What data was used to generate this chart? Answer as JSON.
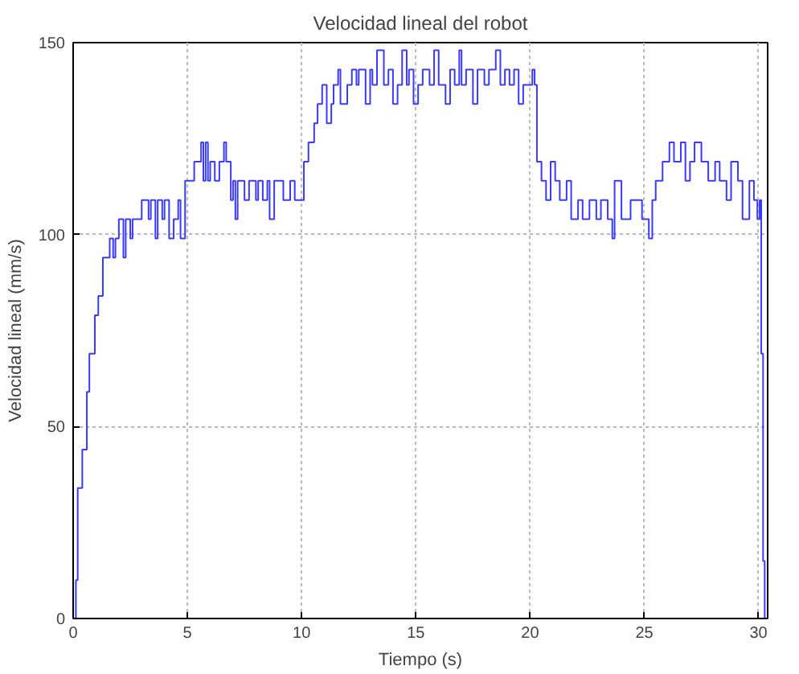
{
  "chart_data": {
    "type": "step",
    "title": "Velocidad lineal del robot",
    "xlabel": "Tiempo (s)",
    "ylabel": "Velocidad lineal (mm/s)",
    "xlim": [
      0,
      30.4
    ],
    "ylim": [
      0,
      150
    ],
    "xticks": [
      0,
      5,
      10,
      15,
      20,
      25,
      30
    ],
    "yticks": [
      0,
      50,
      100,
      150
    ],
    "grid": true,
    "line_style": "solid",
    "series": [
      {
        "color": "#3a3aff",
        "x": [
          0,
          0.12,
          0.2,
          0.4,
          0.6,
          0.71,
          0.95,
          1.1,
          1.3,
          1.6,
          1.75,
          1.85,
          2.0,
          2.2,
          2.3,
          2.5,
          2.6,
          3.0,
          3.3,
          3.4,
          3.6,
          3.7,
          3.9,
          4.0,
          4.2,
          4.4,
          4.6,
          4.7,
          4.9,
          5.3,
          5.6,
          5.7,
          5.8,
          5.9,
          6.0,
          6.2,
          6.4,
          6.6,
          6.7,
          6.9,
          7.0,
          7.1,
          7.2,
          7.5,
          7.7,
          8.0,
          8.1,
          8.3,
          8.5,
          8.6,
          8.8,
          9.2,
          9.5,
          9.7,
          10.1,
          10.3,
          10.55,
          10.7,
          10.9,
          11.1,
          11.3,
          11.4,
          11.6,
          11.7,
          12.0,
          12.2,
          12.4,
          12.5,
          12.8,
          13.0,
          13.1,
          13.3,
          13.6,
          13.8,
          14.0,
          14.2,
          14.4,
          14.6,
          14.7,
          14.9,
          15.1,
          15.3,
          15.6,
          15.8,
          16.0,
          16.3,
          16.5,
          16.7,
          16.9,
          17.0,
          17.2,
          17.5,
          17.7,
          18.0,
          18.2,
          18.5,
          18.7,
          18.9,
          19.1,
          19.3,
          19.5,
          19.7,
          20.1,
          20.2,
          20.3,
          20.5,
          20.7,
          20.9,
          21.1,
          21.3,
          21.6,
          21.8,
          22.1,
          22.3,
          22.6,
          22.9,
          23.1,
          23.4,
          23.6,
          23.7,
          24.0,
          24.4,
          24.9,
          25.2,
          25.35,
          25.5,
          25.8,
          26.1,
          26.3,
          26.6,
          26.8,
          27.0,
          27.2,
          27.5,
          27.8,
          28.1,
          28.3,
          28.6,
          28.8,
          29.1,
          29.3,
          29.6,
          29.8,
          29.95,
          30.05,
          30.12,
          30.2,
          30.27
        ],
        "values": [
          0,
          10,
          34,
          44,
          59,
          69,
          79,
          84,
          94,
          99,
          94,
          99,
          104,
          94,
          104,
          99,
          104,
          109,
          104,
          109,
          99,
          109,
          104,
          109,
          99,
          104,
          109,
          99,
          114,
          119,
          124,
          114,
          124,
          114,
          119,
          114,
          119,
          124,
          119,
          109,
          114,
          104,
          114,
          109,
          114,
          109,
          114,
          109,
          114,
          104,
          114,
          109,
          114,
          109,
          119,
          124,
          129,
          134,
          139,
          129,
          134,
          139,
          143,
          134,
          139,
          143,
          139,
          143,
          134,
          143,
          139,
          148,
          139,
          143,
          134,
          139,
          148,
          139,
          143,
          134,
          139,
          143,
          139,
          148,
          139,
          134,
          143,
          139,
          148,
          139,
          143,
          134,
          143,
          139,
          143,
          148,
          139,
          143,
          139,
          143,
          134,
          139,
          143,
          139,
          119,
          114,
          109,
          119,
          114,
          109,
          114,
          104,
          109,
          104,
          109,
          104,
          109,
          104,
          99,
          114,
          104,
          109,
          104,
          99,
          109,
          114,
          119,
          124,
          119,
          124,
          114,
          119,
          124,
          119,
          114,
          119,
          114,
          109,
          119,
          114,
          104,
          114,
          109,
          104,
          109,
          69,
          15,
          0
        ]
      }
    ]
  }
}
